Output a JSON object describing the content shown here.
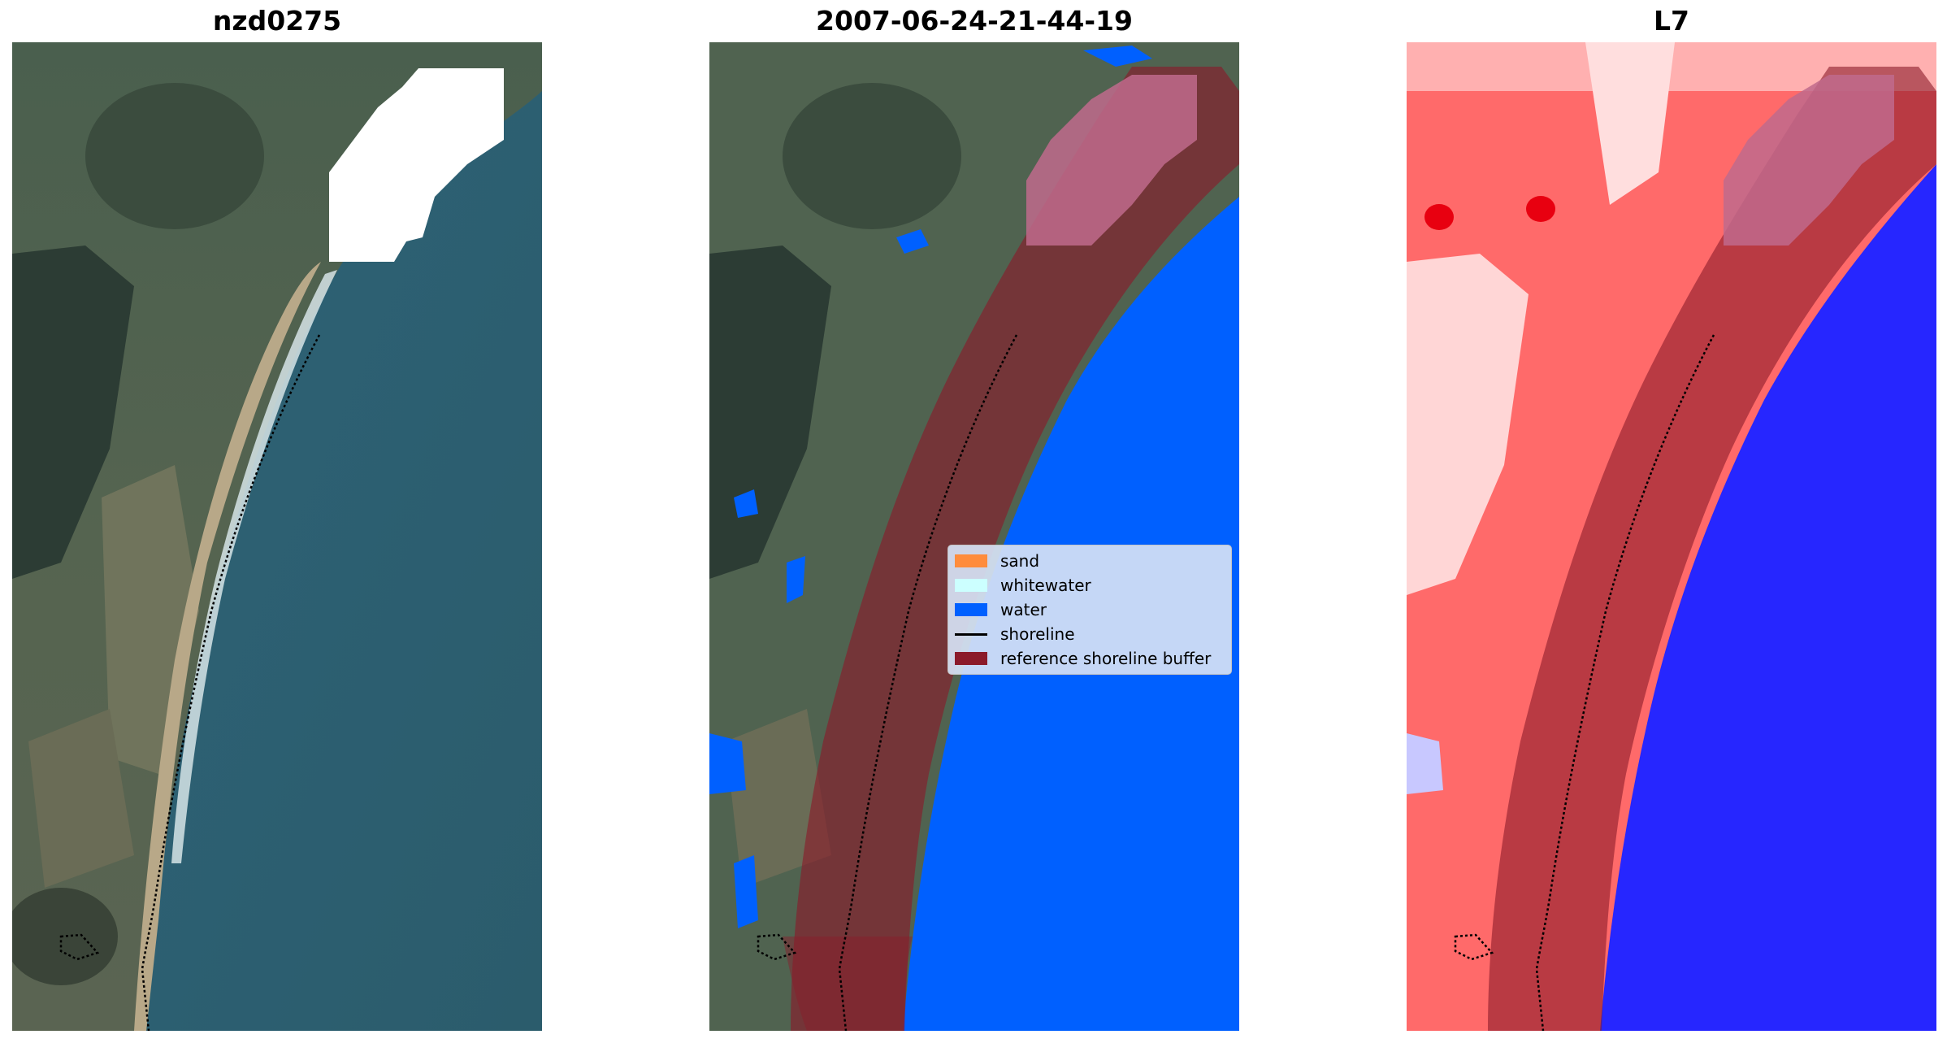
{
  "panels": [
    {
      "title": "nzd0275",
      "content": "RGB satellite image with detected shoreline"
    },
    {
      "title": "2007-06-24-21-44-19",
      "content": "classified image with reference shoreline buffer"
    },
    {
      "title": "L7",
      "content": "water index image with reference shoreline buffer"
    }
  ],
  "legend": {
    "items": [
      {
        "label": "sand",
        "color": "#ff8c3c",
        "kind": "patch"
      },
      {
        "label": "whitewater",
        "color": "#ccffff",
        "kind": "patch"
      },
      {
        "label": "water",
        "color": "#0060ff",
        "kind": "patch"
      },
      {
        "label": "shoreline",
        "color": "#000000",
        "kind": "line"
      },
      {
        "label": "reference shoreline buffer",
        "color": "#8b1a2a",
        "kind": "patch"
      }
    ]
  },
  "colors": {
    "buffer": "#8b1a2a",
    "water_class": "#0060ff",
    "cloud_mask": "#ffffff",
    "index_land": "#ff5050",
    "index_water": "#2626ff"
  }
}
